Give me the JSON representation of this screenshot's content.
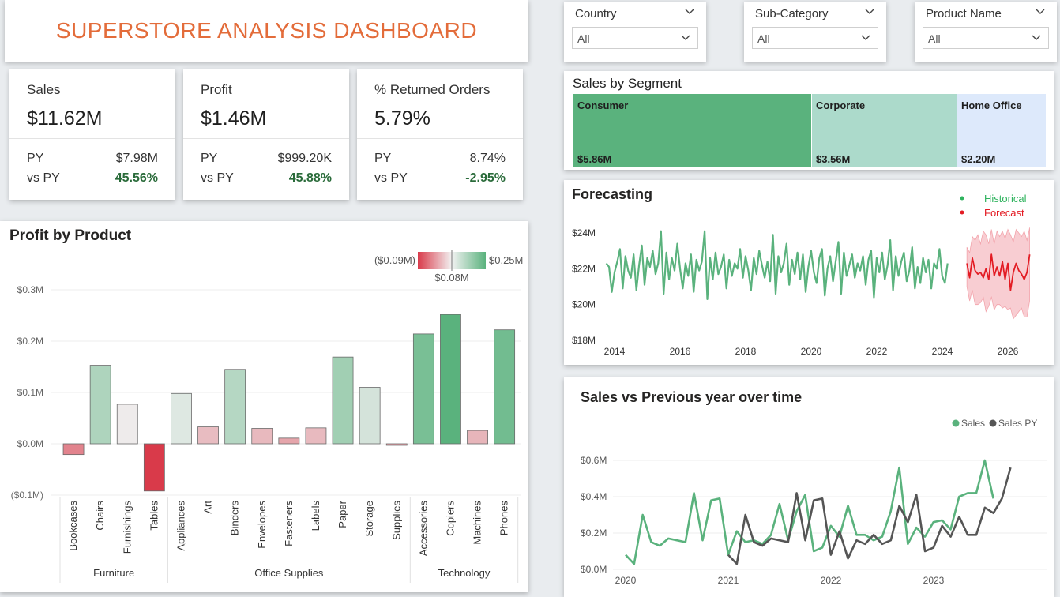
{
  "header": {
    "title": "SUPERSTORE ANALYSIS DASHBOARD"
  },
  "kpis": [
    {
      "label": "Sales",
      "value": "$11.62M",
      "py_label": "PY",
      "py_value": "$7.98M",
      "vs_label": "vs PY",
      "vs_value": "45.56%"
    },
    {
      "label": "Profit",
      "value": "$1.46M",
      "py_label": "PY",
      "py_value": "$999.20K",
      "vs_label": "vs PY",
      "vs_value": "45.88%"
    },
    {
      "label": "% Returned Orders",
      "value": "5.79%",
      "py_label": "PY",
      "py_value": "8.74%",
      "vs_label": "vs PY",
      "vs_value": "-2.95%"
    }
  ],
  "slicers": [
    {
      "label": "Country",
      "value": "All",
      "icon": "chevron-down-icon"
    },
    {
      "label": "Sub-Category",
      "value": "All",
      "icon": "chevron-down-icon"
    },
    {
      "label": "Product Name",
      "value": "All",
      "icon": "chevron-down-icon"
    }
  ],
  "colors": {
    "title": "#e36c3a",
    "positive": "#2a6b3a",
    "green": "#5ab27d",
    "red": "#d93a4a",
    "py": "#555555"
  },
  "chart_data": [
    {
      "type": "treemap",
      "title": "Sales by Segment",
      "categories": [
        "Consumer",
        "Corporate",
        "Home Office"
      ],
      "values": [
        5.86,
        3.56,
        2.2
      ],
      "labels": [
        "$5.86M",
        "$3.56M",
        "$2.20M"
      ],
      "colors": [
        "#5ab27d",
        "#acdacb",
        "#dde9fb"
      ]
    },
    {
      "type": "bar",
      "title": "Profit by Product",
      "ylabel": "",
      "ylim": [
        -0.1,
        0.3
      ],
      "yticks": [
        -0.1,
        0.0,
        0.1,
        0.2,
        0.3
      ],
      "ytick_labels": [
        "($0.1M)",
        "$0.0M",
        "$0.1M",
        "$0.2M",
        "$0.3M"
      ],
      "legend": {
        "min_label": "($0.09M)",
        "mid_label": "$0.08M",
        "max_label": "$0.25M"
      },
      "groups": [
        {
          "name": "Furniture",
          "categories": [
            "Bookcases",
            "Chairs",
            "Furnishings",
            "Tables"
          ],
          "values": [
            -0.021,
            0.153,
            0.077,
            -0.092
          ]
        },
        {
          "name": "Office Supplies",
          "categories": [
            "Appliances",
            "Art",
            "Binders",
            "Envelopes",
            "Fasteners",
            "Labels",
            "Paper",
            "Storage",
            "Supplies"
          ],
          "values": [
            0.098,
            0.033,
            0.145,
            0.03,
            0.011,
            0.031,
            0.169,
            0.11,
            -0.003
          ]
        },
        {
          "name": "Technology",
          "categories": [
            "Accessories",
            "Copiers",
            "Machines",
            "Phones"
          ],
          "values": [
            0.214,
            0.252,
            0.026,
            0.222
          ]
        }
      ]
    },
    {
      "type": "line",
      "title": "Forecasting",
      "ylim": [
        18,
        25
      ],
      "yticks": [
        18,
        20,
        22,
        24
      ],
      "ytick_labels": [
        "$18M",
        "$20M",
        "$22M",
        "$24M"
      ],
      "xticks": [
        2014,
        2016,
        2018,
        2020,
        2022,
        2024,
        2026
      ],
      "legend": [
        "Historical",
        "Forecast"
      ],
      "series": [
        {
          "name": "Historical",
          "x_start": 2013.75,
          "x_step": 0.0833,
          "values": [
            22.3,
            22.1,
            20.7,
            21.8,
            22.4,
            23.1,
            20.9,
            22.7,
            21.9,
            21.5,
            22.8,
            20.8,
            22.2,
            23.3,
            21.1,
            22.6,
            22.1,
            23.0,
            21.7,
            22.3,
            24.1,
            20.6,
            22.9,
            21.4,
            22.6,
            21.9,
            23.4,
            22.0,
            20.9,
            22.3,
            21.6,
            22.8,
            20.7,
            22.5,
            21.9,
            22.4,
            24.1,
            20.3,
            22.6,
            21.4,
            22.9,
            21.7,
            22.1,
            22.8,
            20.9,
            22.5,
            21.6,
            22.3,
            22.0,
            23.1,
            21.5,
            22.7,
            21.9,
            20.8,
            22.6,
            21.7,
            23.0,
            22.2,
            21.5,
            22.4,
            21.3,
            23.9,
            20.6,
            22.7,
            21.8,
            22.3,
            23.4,
            21.1,
            22.5,
            21.7,
            22.9,
            21.4,
            22.8,
            20.7,
            22.1,
            23.0,
            21.8,
            21.2,
            22.6,
            23.1,
            20.5,
            22.0,
            22.7,
            21.3,
            22.4,
            23.5,
            20.6,
            22.9,
            21.6,
            22.2,
            22.8,
            21.5,
            22.3,
            21.9,
            22.7,
            21.1,
            22.5,
            23.0,
            20.4,
            22.6,
            21.8,
            22.9,
            21.4,
            22.2,
            23.6,
            20.8,
            22.7,
            21.6,
            22.4,
            22.9,
            21.3,
            21.9,
            23.2,
            20.9,
            22.1,
            21.2,
            22.6,
            21.8,
            22.5,
            20.9,
            22.3,
            22.0,
            23.1,
            21.6,
            21.2,
            22.3
          ]
        },
        {
          "name": "Forecast",
          "x_start": 2024.75,
          "x_step": 0.0833,
          "values": [
            22.3,
            21.5,
            22.6,
            21.9,
            21.7,
            21.8,
            21.5,
            22.0,
            21.4,
            22.8,
            21.6,
            22.1,
            21.6,
            22.4,
            21.4,
            22.3,
            20.8,
            21.8,
            22.3,
            21.9,
            21.7,
            21.4,
            21.8,
            22.8
          ],
          "lower": [
            21.0,
            20.2,
            20.8,
            20.0,
            20.0,
            20.1,
            20.4,
            19.6,
            19.9,
            20.4,
            19.7,
            20.0,
            20.0,
            19.8,
            19.9,
            19.7,
            19.8,
            19.2,
            19.4,
            19.6,
            19.8,
            19.3,
            19.3,
            20.2
          ],
          "upper": [
            23.2,
            22.9,
            23.8,
            23.6,
            23.9,
            23.4,
            24.1,
            23.9,
            23.4,
            24.2,
            23.4,
            24.1,
            23.8,
            24.1,
            23.7,
            24.2,
            23.9,
            23.5,
            24.2,
            24.0,
            23.8,
            24.1,
            23.6,
            24.3
          ]
        }
      ]
    },
    {
      "type": "line",
      "title": "Sales vs Previous year over time",
      "ylim": [
        0,
        0.65
      ],
      "yticks": [
        0,
        0.2,
        0.4,
        0.6
      ],
      "ytick_labels": [
        "$0.0M",
        "$0.2M",
        "$0.4M",
        "$0.6M"
      ],
      "xticks": [
        2020,
        2021,
        2022,
        2023
      ],
      "legend": [
        "Sales",
        "Sales PY"
      ],
      "series": [
        {
          "name": "Sales",
          "x_start": 2020,
          "x_step": 0.0833,
          "values": [
            0.08,
            0.03,
            0.3,
            0.15,
            0.13,
            0.17,
            0.16,
            0.15,
            0.42,
            0.16,
            0.38,
            0.39,
            0.08,
            0.21,
            0.15,
            0.16,
            0.14,
            0.19,
            0.36,
            0.16,
            0.32,
            0.41,
            0.1,
            0.12,
            0.24,
            0.18,
            0.35,
            0.19,
            0.19,
            0.16,
            0.18,
            0.32,
            0.56,
            0.14,
            0.23,
            0.18,
            0.26,
            0.27,
            0.22,
            0.4,
            0.42,
            0.42,
            0.6,
            0.39
          ]
        },
        {
          "name": "Sales PY",
          "x_start": 2021,
          "x_step": 0.0833,
          "values": [
            0.08,
            0.03,
            0.3,
            0.15,
            0.13,
            0.17,
            0.16,
            0.15,
            0.42,
            0.16,
            0.38,
            0.39,
            0.08,
            0.21,
            0.06,
            0.16,
            0.14,
            0.19,
            0.14,
            0.16,
            0.35,
            0.26,
            0.41,
            0.1,
            0.12,
            0.24,
            0.18,
            0.29,
            0.19,
            0.19,
            0.34,
            0.31,
            0.39,
            0.56
          ]
        }
      ]
    }
  ]
}
